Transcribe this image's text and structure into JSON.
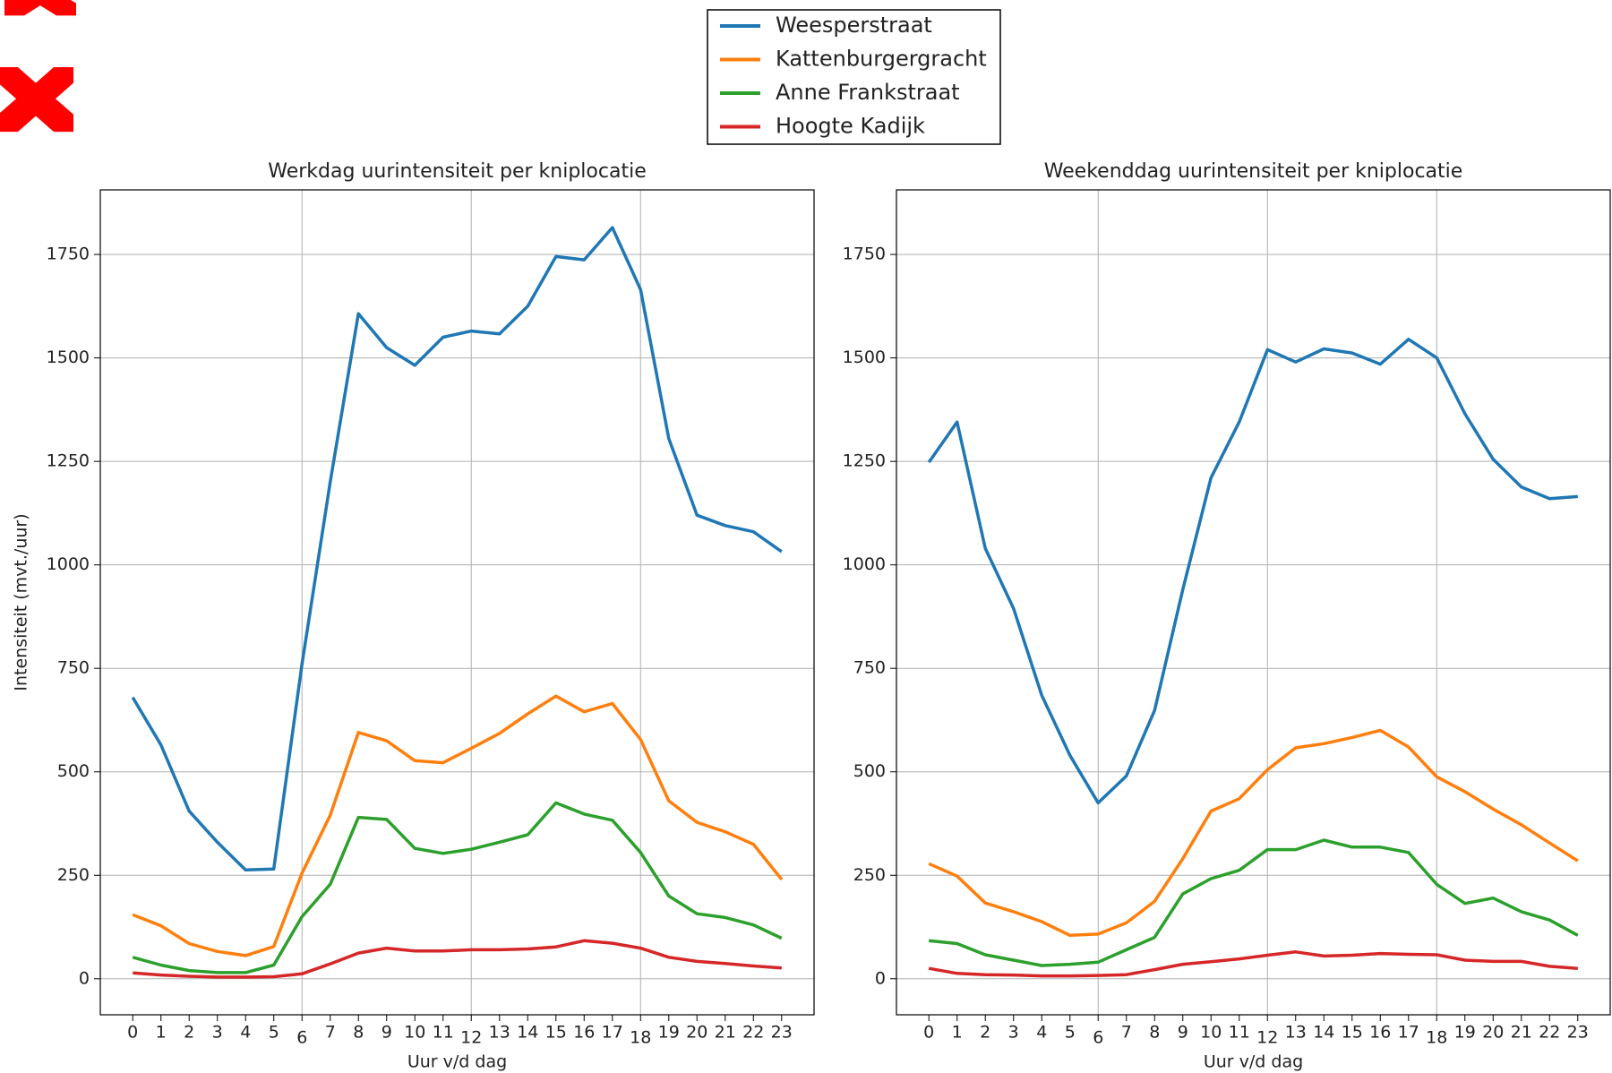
{
  "chart_data": [
    {
      "type": "line",
      "title": "Werkdag uurintensiteit per kniplocatie",
      "xlabel": "Uur v/d dag",
      "ylabel": "Intensiteit (mvt./uur)",
      "x": [
        0,
        1,
        2,
        3,
        4,
        5,
        6,
        7,
        8,
        9,
        10,
        11,
        12,
        13,
        14,
        15,
        16,
        17,
        18,
        19,
        20,
        21,
        22,
        23
      ],
      "xlim": [
        -1.15,
        24.15
      ],
      "xticks": [
        0,
        1,
        2,
        3,
        4,
        5,
        6,
        7,
        8,
        9,
        10,
        11,
        12,
        13,
        14,
        15,
        16,
        17,
        18,
        19,
        20,
        21,
        22,
        23
      ],
      "xgrid": [
        6,
        12,
        18
      ],
      "ylim": [
        -87,
        1906
      ],
      "yticks": [
        0,
        250,
        500,
        750,
        1000,
        1250,
        1500,
        1750
      ],
      "grid": true,
      "series": [
        {
          "name": "Weesperstraat",
          "color": "#1f77b4",
          "values": [
            680,
            565,
            405,
            330,
            263,
            265,
            760,
            1200,
            1607,
            1525,
            1482,
            1550,
            1565,
            1558,
            1625,
            1745,
            1737,
            1815,
            1665,
            1305,
            1120,
            1095,
            1080,
            1032
          ]
        },
        {
          "name": "Kattenburgergracht",
          "color": "#ff7f0e",
          "values": [
            155,
            128,
            85,
            66,
            56,
            78,
            255,
            395,
            595,
            575,
            527,
            522,
            557,
            593,
            640,
            683,
            645,
            665,
            578,
            430,
            378,
            355,
            325,
            240
          ]
        },
        {
          "name": "Anne Frankstraat",
          "color": "#2ca02c",
          "values": [
            52,
            33,
            20,
            15,
            15,
            33,
            150,
            228,
            390,
            385,
            315,
            303,
            313,
            330,
            348,
            425,
            398,
            383,
            305,
            200,
            157,
            148,
            130,
            98
          ]
        },
        {
          "name": "Hoogte Kadijk",
          "color": "#d62728",
          "values": [
            14,
            9,
            6,
            4,
            4,
            5,
            12,
            36,
            62,
            74,
            67,
            67,
            70,
            70,
            72,
            77,
            92,
            86,
            74,
            52,
            42,
            37,
            31,
            26
          ]
        }
      ]
    },
    {
      "type": "line",
      "title": "Weekenddag uurintensiteit per kniplocatie",
      "xlabel": "Uur v/d dag",
      "x": [
        0,
        1,
        2,
        3,
        4,
        5,
        6,
        7,
        8,
        9,
        10,
        11,
        12,
        13,
        14,
        15,
        16,
        17,
        18,
        19,
        20,
        21,
        22,
        23
      ],
      "xlim": [
        -1.15,
        24.15
      ],
      "xticks": [
        0,
        1,
        2,
        3,
        4,
        5,
        6,
        7,
        8,
        9,
        10,
        11,
        12,
        13,
        14,
        15,
        16,
        17,
        18,
        19,
        20,
        21,
        22,
        23
      ],
      "xgrid": [
        6,
        12,
        18
      ],
      "ylim": [
        -87,
        1906
      ],
      "yticks": [
        0,
        250,
        500,
        750,
        1000,
        1250,
        1500,
        1750
      ],
      "grid": true,
      "series": [
        {
          "color": "#1f77b4",
          "values": [
            1248,
            1345,
            1040,
            895,
            685,
            540,
            425,
            490,
            648,
            940,
            1210,
            1345,
            1520,
            1490,
            1522,
            1512,
            1485,
            1545,
            1500,
            1365,
            1255,
            1188,
            1160,
            1165
          ]
        },
        {
          "color": "#ff7f0e",
          "values": [
            278,
            248,
            183,
            162,
            138,
            105,
            108,
            135,
            187,
            290,
            405,
            435,
            505,
            558,
            568,
            583,
            600,
            560,
            488,
            452,
            410,
            372,
            328,
            285
          ]
        },
        {
          "color": "#2ca02c",
          "values": [
            92,
            85,
            58,
            45,
            32,
            35,
            40,
            70,
            100,
            205,
            242,
            262,
            312,
            312,
            335,
            318,
            318,
            305,
            228,
            182,
            195,
            162,
            142,
            105
          ]
        },
        {
          "color": "#d62728",
          "values": [
            25,
            13,
            10,
            9,
            7,
            7,
            8,
            10,
            22,
            35,
            41,
            48,
            57,
            65,
            55,
            57,
            61,
            59,
            58,
            45,
            42,
            42,
            30,
            25
          ]
        }
      ]
    }
  ]
}
